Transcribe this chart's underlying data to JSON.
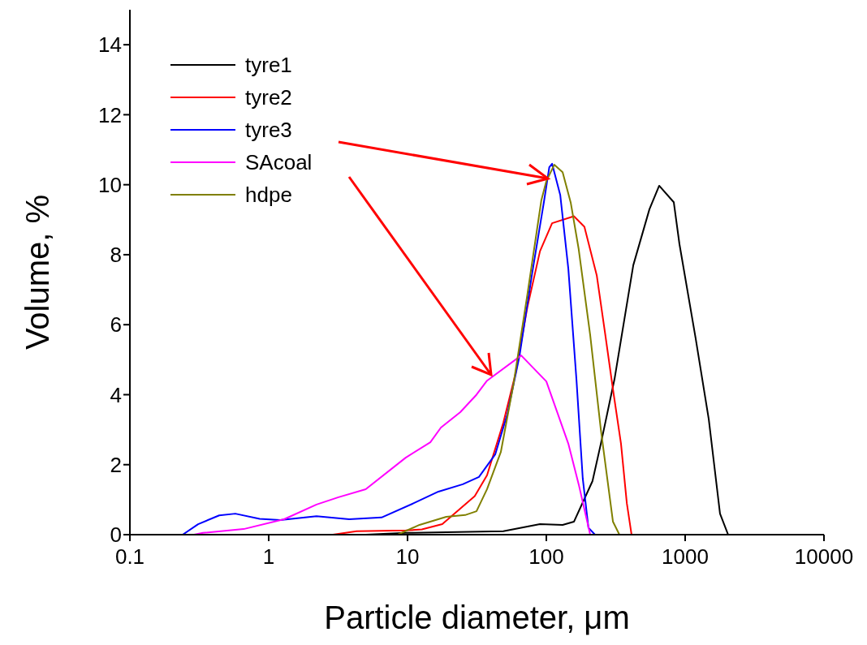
{
  "chart_data": {
    "type": "line",
    "xlabel": "Particle diameter, μm",
    "ylabel": "Volume,  %",
    "log": "x",
    "xlim": [
      0.1,
      10000
    ],
    "xticks": [
      0.1,
      1,
      10,
      100,
      1000,
      10000
    ],
    "ylim": [
      0,
      15
    ],
    "yticks": [
      0,
      2,
      4,
      6,
      8,
      10,
      12,
      14
    ],
    "grid": false,
    "legend": "top left",
    "marker": "none",
    "line_style": "solid",
    "series": [
      {
        "name": "tyre1",
        "color": "#000000",
        "x": [
          0.1,
          5,
          9.7,
          49,
          90,
          131,
          158,
          215,
          247,
          310,
          423,
          553,
          650,
          828,
          910,
          1191,
          1479,
          1783,
          2040,
          10000
        ],
        "values": [
          0,
          0,
          0.05,
          0.1,
          0.3,
          0.28,
          0.37,
          1.53,
          2.6,
          4.45,
          7.7,
          9.3,
          9.97,
          9.5,
          8.3,
          5.6,
          3.3,
          0.6,
          0,
          0
        ]
      },
      {
        "name": "tyre2",
        "color": "#ff0000",
        "x": [
          0.1,
          2.9,
          4.3,
          9.7,
          12.7,
          17.8,
          23.3,
          30.5,
          37.4,
          49,
          60,
          73,
          90,
          110,
          158,
          188,
          231,
          264,
          302,
          345,
          380,
          411,
          10000
        ],
        "values": [
          0,
          0,
          0.1,
          0.12,
          0.15,
          0.3,
          0.7,
          1.1,
          1.7,
          3.2,
          4.6,
          6.5,
          8.1,
          8.9,
          9.1,
          8.8,
          7.4,
          5.8,
          4.15,
          2.6,
          0.9,
          0,
          0
        ]
      },
      {
        "name": "tyre3",
        "color": "#0000ff",
        "x": [
          0.1,
          0.24,
          0.31,
          0.44,
          0.575,
          0.86,
          1.21,
          2.21,
          3.8,
          6.5,
          11.1,
          16.7,
          25,
          32.7,
          42.9,
          52.4,
          64,
          78.5,
          96,
          105,
          110,
          126,
          144,
          165,
          183,
          201,
          224,
          10000
        ],
        "values": [
          0,
          0,
          0.3,
          0.55,
          0.6,
          0.45,
          0.42,
          0.53,
          0.44,
          0.49,
          0.9,
          1.23,
          1.44,
          1.65,
          2.3,
          3.45,
          5.1,
          7.4,
          9.5,
          10.5,
          10.6,
          9.7,
          7.6,
          4.4,
          1.6,
          0.2,
          0,
          0
        ]
      },
      {
        "name": "SAcoal",
        "color": "#ff00ff",
        "x": [
          0.1,
          0.29,
          0.336,
          0.66,
          1.29,
          2.21,
          3.18,
          5.0,
          9.7,
          14.6,
          17.4,
          24,
          31.4,
          37.4,
          65.9,
          100,
          144,
          171,
          207,
          10000
        ],
        "values": [
          0,
          0,
          0.05,
          0.16,
          0.44,
          0.86,
          1.07,
          1.3,
          2.2,
          2.64,
          3.06,
          3.5,
          4.0,
          4.4,
          5.12,
          4.38,
          2.6,
          1.44,
          0,
          0
        ]
      },
      {
        "name": "hdpe",
        "color": "#808000",
        "x": [
          0.1,
          8.5,
          12.2,
          19.0,
          26,
          31.4,
          37.4,
          47,
          58,
          73,
          92,
          100,
          114,
          131,
          150,
          171,
          207,
          247,
          302,
          336,
          10000
        ],
        "values": [
          0,
          0,
          0.28,
          0.51,
          0.56,
          0.67,
          1.3,
          2.36,
          4.3,
          6.86,
          9.55,
          10.1,
          10.57,
          10.36,
          9.48,
          8.16,
          5.7,
          3.0,
          0.37,
          0,
          0
        ]
      }
    ]
  }
}
